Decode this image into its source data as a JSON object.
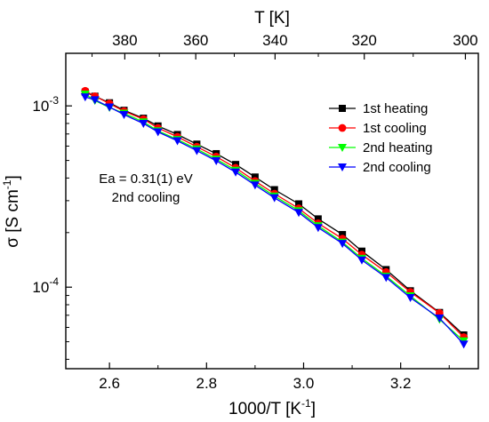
{
  "chart_data": {
    "type": "line",
    "xlabel": "1000/T [K",
    "xlabel_sup": "-1",
    "xlabel_end": "]",
    "top_xlabel": "T [K]",
    "ylabel": "σ [S cm",
    "ylabel_sup": "-1",
    "ylabel_end": "]",
    "xlim": [
      2.51,
      3.36
    ],
    "ylim": [
      3.55e-05,
      0.00195
    ],
    "yscale": "log",
    "x_ticks": [
      2.6,
      2.8,
      3.0,
      3.2
    ],
    "x_tick_labels": [
      "2.6",
      "2.8",
      "3.0",
      "3.2"
    ],
    "top_ticks": [
      380,
      360,
      340,
      320,
      300
    ],
    "top_tick_labels": [
      "380",
      "360",
      "340",
      "320",
      "300"
    ],
    "y_ticks": [
      0.0001,
      0.001
    ],
    "y_tick_base": "10",
    "y_tick_exponents": [
      "-4",
      "-3"
    ],
    "legend_position": "top-right",
    "annotation": {
      "line1": "Ea = 0.31(1) eV",
      "line2": "2nd cooling"
    },
    "series": [
      {
        "name": "1st heating",
        "color": "#000000",
        "marker": "square",
        "x": [
          2.55,
          2.57,
          2.6,
          2.63,
          2.67,
          2.7,
          2.74,
          2.78,
          2.82,
          2.86,
          2.9,
          2.94,
          2.99,
          3.03,
          3.08,
          3.12,
          3.17,
          3.22,
          3.28,
          3.33
        ],
        "y": [
          0.00119,
          0.00113,
          0.00104,
          0.000945,
          0.000855,
          0.000775,
          0.000695,
          0.000615,
          0.000545,
          0.000475,
          0.000405,
          0.000345,
          0.000288,
          0.000238,
          0.000195,
          0.000158,
          0.000125,
          9.55e-05,
          7.25e-05,
          5.45e-05
        ]
      },
      {
        "name": "1st cooling",
        "color": "#ff0000",
        "marker": "circle",
        "x": [
          2.55,
          2.57,
          2.6,
          2.63,
          2.67,
          2.7,
          2.74,
          2.78,
          2.82,
          2.86,
          2.9,
          2.94,
          2.99,
          3.03,
          3.08,
          3.12,
          3.17,
          3.22,
          3.28,
          3.33
        ],
        "y": [
          0.00121,
          0.00113,
          0.00103,
          0.000935,
          0.000845,
          0.000755,
          0.000675,
          0.000595,
          0.000525,
          0.000455,
          0.000385,
          0.000328,
          0.000272,
          0.000225,
          0.000185,
          0.000151,
          0.000121,
          9.4e-05,
          7.2e-05,
          5.3e-05
        ]
      },
      {
        "name": "2nd heating",
        "color": "#00ff00",
        "marker": "triangle-down",
        "x": [
          2.55,
          2.57,
          2.6,
          2.63,
          2.67,
          2.7,
          2.74,
          2.78,
          2.82,
          2.86,
          2.9,
          2.94,
          2.99,
          3.03,
          3.08,
          3.12,
          3.17,
          3.22,
          3.28,
          3.33
        ],
        "y": [
          0.00116,
          0.00107,
          0.00098,
          0.00091,
          0.000815,
          0.000728,
          0.000652,
          0.000578,
          0.000508,
          0.000441,
          0.000374,
          0.000318,
          0.000264,
          0.000218,
          0.000177,
          0.000144,
          0.000115,
          8.95e-05,
          6.65e-05,
          5.05e-05
        ]
      },
      {
        "name": "2nd cooling",
        "color": "#0000ff",
        "marker": "triangle-down",
        "x": [
          2.55,
          2.57,
          2.6,
          2.63,
          2.67,
          2.7,
          2.74,
          2.78,
          2.82,
          2.86,
          2.9,
          2.94,
          2.99,
          3.03,
          3.08,
          3.12,
          3.17,
          3.22,
          3.28,
          3.33
        ],
        "y": [
          0.00112,
          0.00108,
          0.000985,
          0.000895,
          0.0008,
          0.000718,
          0.000642,
          0.000566,
          0.000498,
          0.000431,
          0.000366,
          0.000311,
          0.000258,
          0.000213,
          0.000174,
          0.000141,
          0.000113,
          8.75e-05,
          6.75e-05,
          4.85e-05
        ]
      }
    ]
  }
}
